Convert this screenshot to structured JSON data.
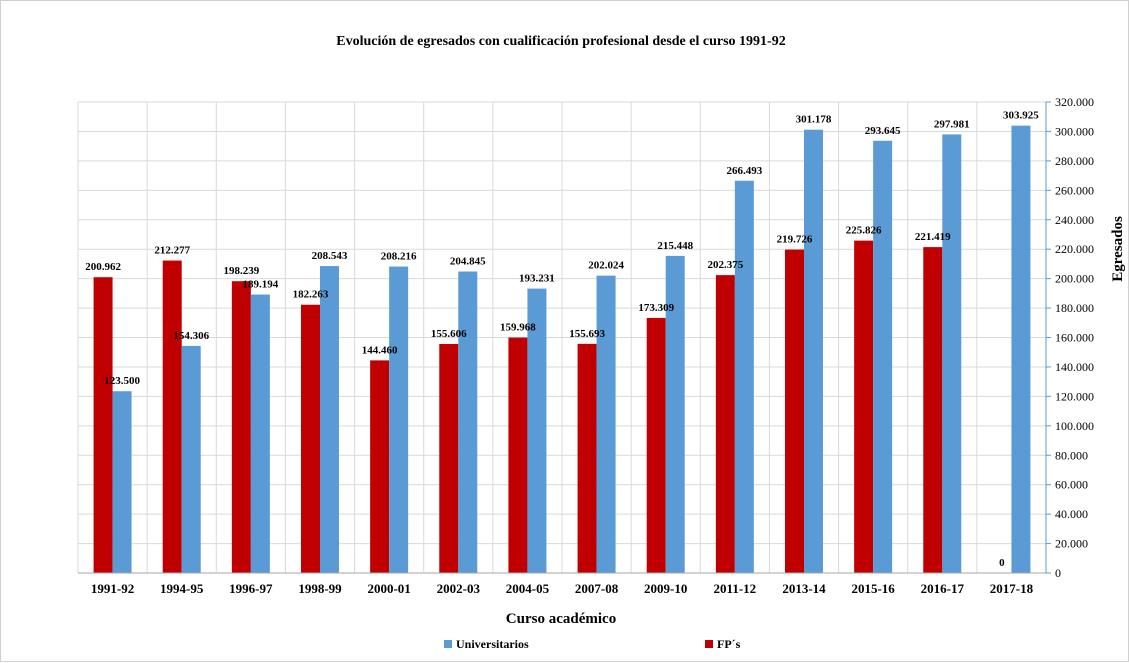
{
  "chart_data": {
    "type": "bar",
    "title": "Evolución de egresados con cualificación profesional desde el curso 1991-92",
    "xlabel": "Curso académico",
    "ylabel": "Egresados",
    "ylim": [
      0,
      320000
    ],
    "ytick_step": 20000,
    "ytick_labels": [
      "0",
      "20.000",
      "40.000",
      "60.000",
      "80.000",
      "100.000",
      "120.000",
      "140.000",
      "160.000",
      "180.000",
      "200.000",
      "220.000",
      "240.000",
      "260.000",
      "280.000",
      "300.000",
      "320.000"
    ],
    "y_axis_side": "right",
    "grid": true,
    "legend_position": "bottom",
    "categories": [
      "1991-92",
      "1994-95",
      "1996-97",
      "1998-99",
      "2000-01",
      "2002-03",
      "2004-05",
      "2007-08",
      "2009-10",
      "2011-12",
      "2013-14",
      "2015-16",
      "2016-17",
      "2017-18"
    ],
    "series": [
      {
        "name": "FP´s",
        "color": "#c00000",
        "values": [
          200962,
          212277,
          198239,
          182263,
          144460,
          155606,
          159968,
          155693,
          173309,
          202375,
          219726,
          225826,
          221419,
          0
        ],
        "labels": [
          "200.962",
          "212.277",
          "198.239",
          "182.263",
          "144.460",
          "155.606",
          "159.968",
          "155.693",
          "173.309",
          "202.375",
          "219.726",
          "225.826",
          "221.419",
          "0"
        ]
      },
      {
        "name": "Universitarios",
        "color": "#5b9bd5",
        "values": [
          123500,
          154306,
          189194,
          208543,
          208216,
          204845,
          193231,
          202024,
          215448,
          266493,
          301178,
          293645,
          297981,
          303925
        ],
        "labels": [
          "123.500",
          "154.306",
          "189.194",
          "208.543",
          "208.216",
          "204.845",
          "193.231",
          "202.024",
          "215.448",
          "266.493",
          "301.178",
          "293.645",
          "297.981",
          "303.925"
        ]
      }
    ],
    "legend_order": [
      "Universitarios",
      "FP´s"
    ]
  }
}
